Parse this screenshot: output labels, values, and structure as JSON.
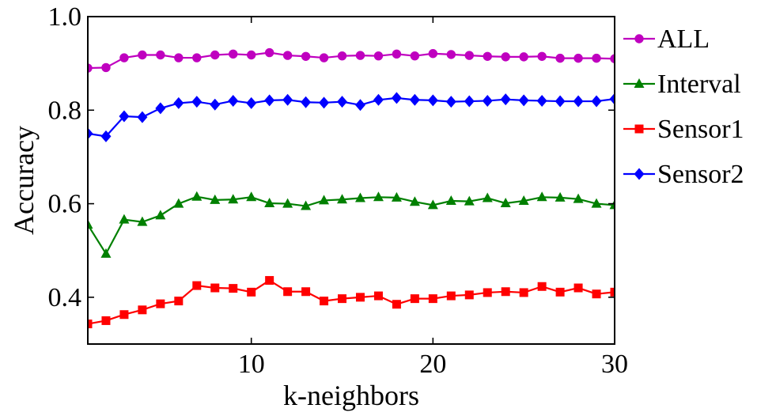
{
  "chart_data": {
    "type": "line",
    "title": "",
    "xlabel": "k-neighbors",
    "ylabel": "Accuracy",
    "xlim": [
      1,
      30
    ],
    "ylim": [
      0.3,
      1.0
    ],
    "xticks": [
      10,
      20,
      30
    ],
    "yticks": [
      0.4,
      0.6,
      0.8,
      1.0
    ],
    "ytick_labels": [
      "0.4",
      "0.6",
      "0.8",
      "1.0"
    ],
    "xtick_labels": [
      "10",
      "20",
      "30"
    ],
    "grid": false,
    "legend_position": "outside-right",
    "x": [
      1,
      2,
      3,
      4,
      5,
      6,
      7,
      8,
      9,
      10,
      11,
      12,
      13,
      14,
      15,
      16,
      17,
      18,
      19,
      20,
      21,
      22,
      23,
      24,
      25,
      26,
      27,
      28,
      29,
      30
    ],
    "series": [
      {
        "name": "ALL",
        "color": "#bf00bf",
        "marker": "circle",
        "values": [
          0.89,
          0.891,
          0.912,
          0.918,
          0.918,
          0.912,
          0.912,
          0.918,
          0.92,
          0.918,
          0.923,
          0.917,
          0.915,
          0.912,
          0.916,
          0.917,
          0.916,
          0.92,
          0.916,
          0.921,
          0.919,
          0.917,
          0.915,
          0.914,
          0.914,
          0.915,
          0.911,
          0.911,
          0.911,
          0.91
        ]
      },
      {
        "name": "Interval",
        "color": "#008000",
        "marker": "triangle",
        "values": [
          0.555,
          0.493,
          0.566,
          0.561,
          0.575,
          0.6,
          0.615,
          0.608,
          0.609,
          0.614,
          0.601,
          0.6,
          0.595,
          0.607,
          0.609,
          0.612,
          0.614,
          0.613,
          0.604,
          0.597,
          0.606,
          0.605,
          0.612,
          0.601,
          0.606,
          0.614,
          0.613,
          0.61,
          0.6,
          0.597
        ]
      },
      {
        "name": "Sensor1",
        "color": "#ff0000",
        "marker": "square",
        "values": [
          0.343,
          0.35,
          0.363,
          0.373,
          0.386,
          0.392,
          0.425,
          0.42,
          0.419,
          0.411,
          0.436,
          0.412,
          0.412,
          0.392,
          0.397,
          0.4,
          0.403,
          0.385,
          0.397,
          0.397,
          0.403,
          0.405,
          0.41,
          0.412,
          0.41,
          0.423,
          0.411,
          0.42,
          0.407,
          0.411
        ]
      },
      {
        "name": "Sensor2",
        "color": "#0000ff",
        "marker": "diamond",
        "values": [
          0.75,
          0.744,
          0.787,
          0.785,
          0.804,
          0.815,
          0.818,
          0.812,
          0.82,
          0.815,
          0.821,
          0.822,
          0.817,
          0.816,
          0.818,
          0.811,
          0.822,
          0.826,
          0.822,
          0.821,
          0.818,
          0.819,
          0.82,
          0.823,
          0.821,
          0.82,
          0.819,
          0.819,
          0.819,
          0.824
        ]
      }
    ]
  }
}
